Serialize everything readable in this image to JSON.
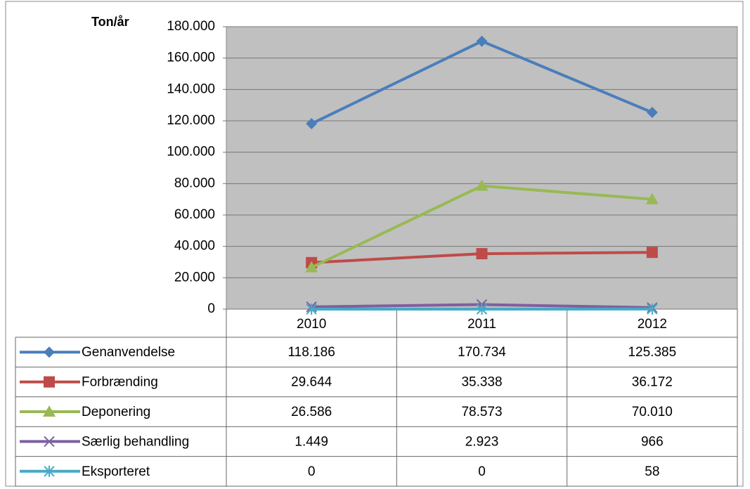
{
  "chart_data": {
    "type": "line",
    "y_label": "Ton/år",
    "categories": [
      "2010",
      "2011",
      "2012"
    ],
    "series": [
      {
        "name": "Genanvendelse",
        "color": "#4a7ebb",
        "marker": "diamond",
        "values": [
          118186,
          170734,
          125385
        ],
        "value_labels": [
          "118.186",
          "170.734",
          "125.385"
        ]
      },
      {
        "name": "Forbrænding",
        "color": "#be4b48",
        "marker": "square",
        "values": [
          29644,
          35338,
          36172
        ],
        "value_labels": [
          "29.644",
          "35.338",
          "36.172"
        ]
      },
      {
        "name": "Deponering",
        "color": "#98b954",
        "marker": "triangle",
        "values": [
          26586,
          78573,
          70010
        ],
        "value_labels": [
          "26.586",
          "78.573",
          "70.010"
        ]
      },
      {
        "name": "Særlig behandling",
        "color": "#7d60a0",
        "marker": "x",
        "values": [
          1449,
          2923,
          966
        ],
        "value_labels": [
          "1.449",
          "2.923",
          "966"
        ]
      },
      {
        "name": "Eksporteret",
        "color": "#46aac5",
        "marker": "star",
        "values": [
          0,
          0,
          58
        ],
        "value_labels": [
          "0",
          "0",
          "58"
        ]
      }
    ],
    "ylim": [
      0,
      180000
    ],
    "yticks": [
      0,
      {
        "value": 20000,
        "label": "20.000"
      },
      {
        "value": 40000,
        "label": "40.000"
      },
      {
        "value": 60000,
        "label": "60.000"
      },
      {
        "value": 80000,
        "label": "80.000"
      },
      {
        "value": 100000,
        "label": "100.000"
      },
      {
        "value": 120000,
        "label": "120.000"
      },
      {
        "value": 140000,
        "label": "140.000"
      },
      {
        "value": 160000,
        "label": "160.000"
      },
      {
        "value": 180000,
        "label": "180.000"
      }
    ],
    "grid": true,
    "plot_background": "#c0c0c0"
  }
}
